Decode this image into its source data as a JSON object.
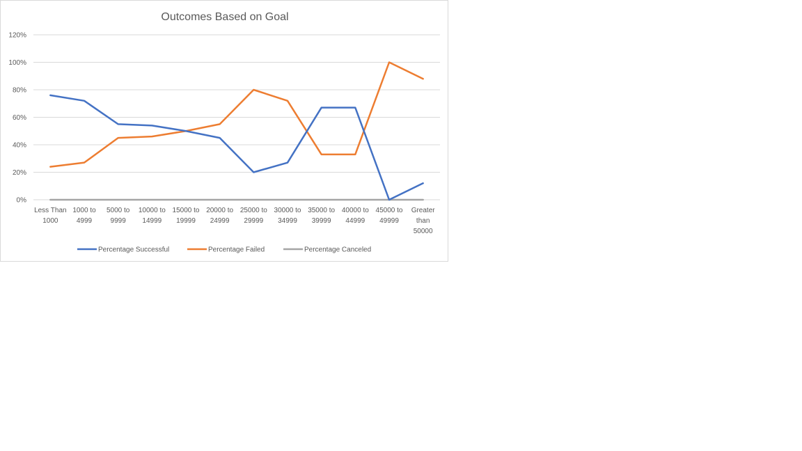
{
  "chart_data": {
    "type": "line",
    "title": "Outcomes Based on Goal",
    "xlabel": "",
    "ylabel": "",
    "ylim": [
      0,
      1.2
    ],
    "y_ticks": [
      0,
      0.2,
      0.4,
      0.6,
      0.8,
      1.0,
      1.2
    ],
    "y_tick_labels": [
      "0%",
      "20%",
      "40%",
      "60%",
      "80%",
      "100%",
      "120%"
    ],
    "grid": true,
    "legend_position": "bottom",
    "categories": [
      [
        "Less Than",
        "1000"
      ],
      [
        "1000 to",
        "4999"
      ],
      [
        "5000 to",
        "9999"
      ],
      [
        "10000 to",
        "14999"
      ],
      [
        "15000 to",
        "19999"
      ],
      [
        "20000 to",
        "24999"
      ],
      [
        "25000 to",
        "29999"
      ],
      [
        "30000 to",
        "34999"
      ],
      [
        "35000 to",
        "39999"
      ],
      [
        "40000 to",
        "44999"
      ],
      [
        "45000 to",
        "49999"
      ],
      [
        "Greater",
        "than",
        "50000"
      ]
    ],
    "series": [
      {
        "name": "Percentage Successful",
        "color": "#4472c4",
        "values": [
          0.76,
          0.72,
          0.55,
          0.54,
          0.5,
          0.45,
          0.2,
          0.27,
          0.67,
          0.67,
          0.0,
          0.12
        ]
      },
      {
        "name": "Percentage Failed",
        "color": "#ed7d31",
        "values": [
          0.24,
          0.27,
          0.45,
          0.46,
          0.5,
          0.55,
          0.8,
          0.72,
          0.33,
          0.33,
          1.0,
          0.88
        ]
      },
      {
        "name": "Percentage Canceled",
        "color": "#a5a5a5",
        "values": [
          0,
          0,
          0,
          0,
          0,
          0,
          0,
          0,
          0,
          0,
          0,
          0
        ]
      }
    ]
  }
}
